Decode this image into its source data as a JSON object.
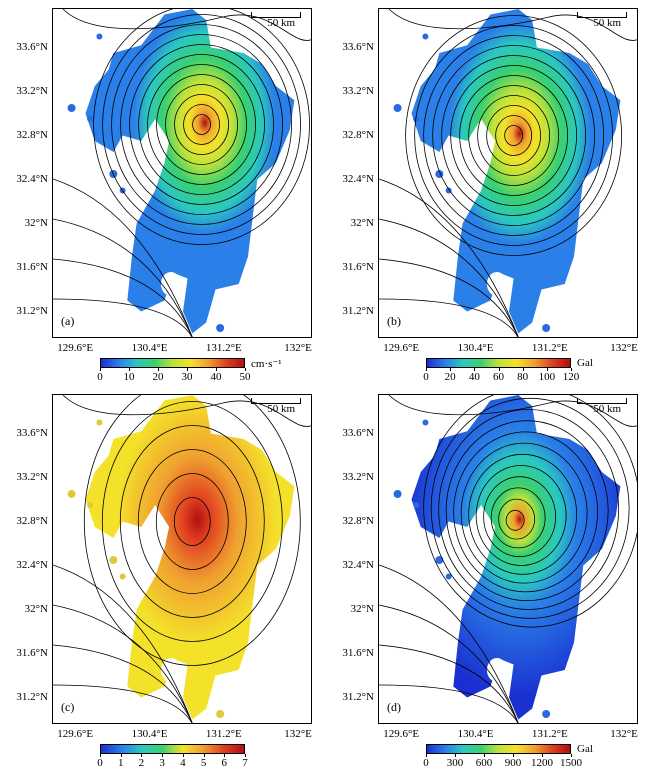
{
  "panels": [
    {
      "label": "(a)",
      "scale": "50 km",
      "lat_labels": [
        "33.6°N",
        "33.2°N",
        "32.8°N",
        "32.4°N",
        "32°N",
        "31.6°N",
        "31.2°N"
      ],
      "lon_labels": [
        "129.6°E",
        "130.4°E",
        "131.2°E",
        "132°E"
      ],
      "colorbar": {
        "ticks": [
          "0",
          "10",
          "20",
          "30",
          "40",
          "50"
        ],
        "unit": "cm·s⁻¹"
      },
      "hotspot": {
        "lon": 130.95,
        "lat": 32.9
      },
      "base_color": "#2a5fd8"
    },
    {
      "label": "(b)",
      "scale": "50 km",
      "lat_labels": [
        "33.6°N",
        "33.2°N",
        "32.8°N",
        "32.4°N",
        "32°N",
        "31.6°N",
        "31.2°N"
      ],
      "lon_labels": [
        "129.6°E",
        "130.4°E",
        "131.2°E",
        "132°E"
      ],
      "colorbar": {
        "ticks": [
          "0",
          "20",
          "40",
          "60",
          "80",
          "100",
          "120"
        ],
        "unit": "Gal"
      },
      "hotspot": {
        "lon": 130.8,
        "lat": 32.8
      },
      "base_color": "#2a5fd8"
    },
    {
      "label": "(c)",
      "scale": "50 km",
      "lat_labels": [
        "33.6°N",
        "33.2°N",
        "32.8°N",
        "32.4°N",
        "32°N",
        "31.6°N",
        "31.2°N"
      ],
      "lon_labels": [
        "129.6°E",
        "130.4°E",
        "131.2°E",
        "132°E"
      ],
      "colorbar": {
        "ticks": [
          "0",
          "1",
          "2",
          "3",
          "4",
          "5",
          "6",
          "7"
        ],
        "unit": ""
      },
      "hotspot": {
        "lon": 130.85,
        "lat": 32.8
      },
      "base_color": "#e8df2a"
    },
    {
      "label": "(d)",
      "scale": "50 km",
      "lat_labels": [
        "33.6°N",
        "33.2°N",
        "32.8°N",
        "32.4°N",
        "32°N",
        "31.6°N",
        "31.2°N"
      ],
      "lon_labels": [
        "129.6°E",
        "130.4°E",
        "131.2°E",
        "132°E"
      ],
      "colorbar": {
        "ticks": [
          "0",
          "300",
          "600",
          "900",
          "1200",
          "1500"
        ],
        "unit": "Gal"
      },
      "hotspot": {
        "lon": 130.8,
        "lat": 32.8
      },
      "base_color": "#2a5fd8"
    }
  ],
  "colors": {
    "ramp": [
      "#1a2fd0",
      "#2a7fe8",
      "#2ac8c0",
      "#3ad070",
      "#bde23a",
      "#f4e22a",
      "#f0a030",
      "#e04020",
      "#b01010"
    ]
  }
}
